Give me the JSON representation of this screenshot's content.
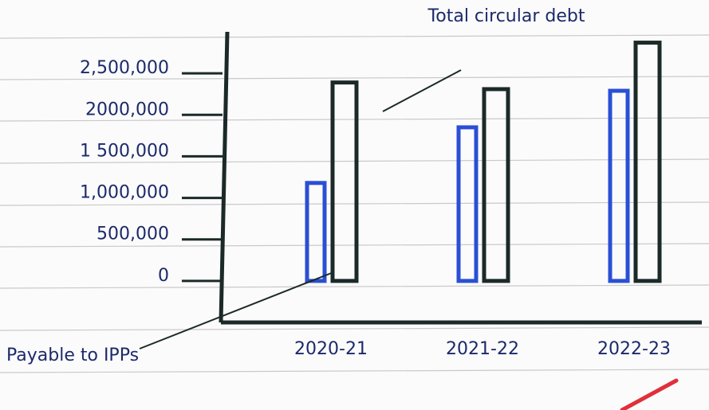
{
  "chart_data": {
    "type": "bar",
    "categories": [
      "2020-21",
      "2021-22",
      "2022-23"
    ],
    "series": [
      {
        "name": "Payable to IPPs",
        "color": "#2a4fd6",
        "values": [
          1180000,
          1850000,
          2290000
        ]
      },
      {
        "name": "Total circular debt",
        "color": "#1b2a28",
        "values": [
          2390000,
          2310000,
          2870000
        ]
      }
    ],
    "ylim": [
      -500000,
      3000000
    ],
    "yticks": [
      {
        "value": 0,
        "label": "0"
      },
      {
        "value": 500000,
        "label": "500,000"
      },
      {
        "value": 1000000,
        "label": "1,000,000"
      },
      {
        "value": 1500000,
        "label": "1 500,000"
      },
      {
        "value": 2000000,
        "label": "2000,000"
      },
      {
        "value": 2500000,
        "label": "2,500,000"
      }
    ]
  }
}
